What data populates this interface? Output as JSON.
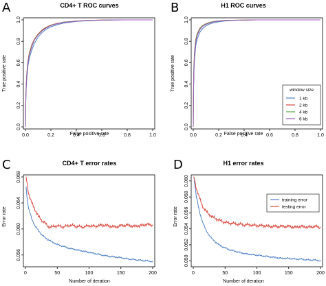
{
  "chart_data": [
    {
      "type": "line",
      "panel": "A",
      "title": "CD4+ T ROC curves",
      "xlabel": "False positive rate",
      "ylabel": "True positive rate",
      "xlim": [
        0,
        1
      ],
      "ylim": [
        0,
        1
      ],
      "xticks": [
        "0.0",
        "0.2",
        "0.4",
        "0.6",
        "0.8",
        "1.0"
      ],
      "yticks": [
        "0.0",
        "0.2",
        "0.4",
        "0.6",
        "0.8",
        "1.0"
      ],
      "grid": false,
      "series": [
        {
          "name": "1 kb",
          "color": "#4f81c7",
          "x": [
            0,
            0.002,
            0.005,
            0.01,
            0.02,
            0.03,
            0.05,
            0.07,
            0.1,
            0.13,
            0.16,
            0.2,
            0.25,
            0.3,
            0.4,
            0.5,
            0.6,
            0.7,
            0.8,
            0.9,
            1.0
          ],
          "y": [
            0,
            0.2,
            0.33,
            0.45,
            0.57,
            0.64,
            0.72,
            0.78,
            0.84,
            0.88,
            0.91,
            0.935,
            0.955,
            0.97,
            0.985,
            0.993,
            0.997,
            0.999,
            1.0,
            1.0,
            1.0
          ]
        },
        {
          "name": "2 kb",
          "color": "#d9473b",
          "x": [
            0,
            0.002,
            0.005,
            0.01,
            0.02,
            0.03,
            0.05,
            0.07,
            0.1,
            0.13,
            0.16,
            0.2,
            0.25,
            0.3,
            0.4,
            0.5,
            0.6,
            0.7,
            0.8,
            0.9,
            1.0
          ],
          "y": [
            0,
            0.23,
            0.37,
            0.5,
            0.62,
            0.69,
            0.77,
            0.82,
            0.87,
            0.905,
            0.93,
            0.952,
            0.968,
            0.979,
            0.99,
            0.996,
            0.998,
            1.0,
            1.0,
            1.0,
            1.0
          ]
        },
        {
          "name": "4 kb",
          "color": "#5aa64a",
          "x": [
            0,
            0.002,
            0.005,
            0.01,
            0.02,
            0.03,
            0.05,
            0.07,
            0.1,
            0.13,
            0.16,
            0.2,
            0.25,
            0.3,
            0.4,
            0.5,
            0.6,
            0.7,
            0.8,
            0.9,
            1.0
          ],
          "y": [
            0,
            0.22,
            0.36,
            0.49,
            0.61,
            0.68,
            0.76,
            0.815,
            0.865,
            0.9,
            0.926,
            0.95,
            0.966,
            0.978,
            0.989,
            0.995,
            0.998,
            1.0,
            1.0,
            1.0,
            1.0
          ]
        },
        {
          "name": "6 kb",
          "color": "#9b59b6",
          "x": [
            0,
            0.002,
            0.005,
            0.01,
            0.02,
            0.03,
            0.05,
            0.07,
            0.1,
            0.13,
            0.16,
            0.2,
            0.25,
            0.3,
            0.4,
            0.5,
            0.6,
            0.7,
            0.8,
            0.9,
            1.0
          ],
          "y": [
            0,
            0.21,
            0.35,
            0.48,
            0.6,
            0.67,
            0.75,
            0.81,
            0.86,
            0.895,
            0.922,
            0.947,
            0.964,
            0.976,
            0.988,
            0.995,
            0.998,
            1.0,
            1.0,
            1.0,
            1.0
          ]
        }
      ]
    },
    {
      "type": "line",
      "panel": "B",
      "title": "H1 ROC curves",
      "xlabel": "False positive rate",
      "ylabel": "True positive rate",
      "xlim": [
        0,
        1
      ],
      "ylim": [
        0,
        1
      ],
      "xticks": [
        "0.0",
        "0.2",
        "0.4",
        "0.6",
        "0.8",
        "1.0"
      ],
      "yticks": [
        "0.0",
        "0.2",
        "0.4",
        "0.6",
        "0.8",
        "1.0"
      ],
      "grid": false,
      "legend": {
        "title": "window size",
        "placement": "right"
      },
      "series": [
        {
          "name": "1 kb",
          "color": "#4f81c7",
          "x": [
            0,
            0.002,
            0.005,
            0.01,
            0.02,
            0.03,
            0.05,
            0.07,
            0.1,
            0.13,
            0.16,
            0.2,
            0.25,
            0.3,
            0.4,
            0.5,
            0.6,
            0.7,
            0.8,
            0.9,
            1.0
          ],
          "y": [
            0,
            0.3,
            0.5,
            0.64,
            0.76,
            0.82,
            0.88,
            0.915,
            0.945,
            0.962,
            0.973,
            0.983,
            0.99,
            0.994,
            0.998,
            1.0,
            1.0,
            1.0,
            1.0,
            1.0,
            1.0
          ]
        },
        {
          "name": "2 kb",
          "color": "#d9473b",
          "x": [
            0,
            0.002,
            0.005,
            0.01,
            0.02,
            0.03,
            0.05,
            0.07,
            0.1,
            0.13,
            0.16,
            0.2,
            0.25,
            0.3,
            0.4,
            0.5,
            0.6,
            0.7,
            0.8,
            0.9,
            1.0
          ],
          "y": [
            0,
            0.36,
            0.57,
            0.71,
            0.82,
            0.87,
            0.92,
            0.945,
            0.965,
            0.977,
            0.985,
            0.991,
            0.995,
            0.997,
            0.999,
            1.0,
            1.0,
            1.0,
            1.0,
            1.0,
            1.0
          ]
        },
        {
          "name": "4 kb",
          "color": "#5aa64a",
          "x": [
            0,
            0.002,
            0.005,
            0.01,
            0.02,
            0.03,
            0.05,
            0.07,
            0.1,
            0.13,
            0.16,
            0.2,
            0.25,
            0.3,
            0.4,
            0.5,
            0.6,
            0.7,
            0.8,
            0.9,
            1.0
          ],
          "y": [
            0,
            0.35,
            0.56,
            0.7,
            0.81,
            0.865,
            0.915,
            0.942,
            0.963,
            0.976,
            0.984,
            0.99,
            0.994,
            0.997,
            0.999,
            1.0,
            1.0,
            1.0,
            1.0,
            1.0,
            1.0
          ]
        },
        {
          "name": "6 kb",
          "color": "#9b59b6",
          "x": [
            0,
            0.002,
            0.005,
            0.01,
            0.02,
            0.03,
            0.05,
            0.07,
            0.1,
            0.13,
            0.16,
            0.2,
            0.25,
            0.3,
            0.4,
            0.5,
            0.6,
            0.7,
            0.8,
            0.9,
            1.0
          ],
          "y": [
            0,
            0.33,
            0.54,
            0.68,
            0.79,
            0.85,
            0.905,
            0.935,
            0.958,
            0.972,
            0.981,
            0.988,
            0.993,
            0.996,
            0.999,
            1.0,
            1.0,
            1.0,
            1.0,
            1.0,
            1.0
          ]
        }
      ]
    },
    {
      "type": "line",
      "panel": "C",
      "title": "CD4+ T error rates",
      "xlabel": "Number of iteration",
      "ylabel": "Error rate",
      "xlim": [
        0,
        200
      ],
      "ylim": [
        0.0545,
        0.068
      ],
      "xticks": [
        "0",
        "50",
        "100",
        "150",
        "200"
      ],
      "yticks": [
        "0.056",
        "0.060",
        "0.064",
        "0.068"
      ],
      "grid": false,
      "series": [
        {
          "name": "training error",
          "color": "#4f81c7",
          "x": [
            1,
            3,
            5,
            8,
            10,
            15,
            20,
            25,
            30,
            40,
            50,
            60,
            70,
            80,
            90,
            100,
            110,
            120,
            130,
            140,
            150,
            160,
            170,
            180,
            190,
            200
          ],
          "y": [
            0.0665,
            0.0643,
            0.0632,
            0.0622,
            0.0615,
            0.0605,
            0.0598,
            0.0592,
            0.0587,
            0.0581,
            0.0576,
            0.0573,
            0.057,
            0.0568,
            0.0566,
            0.0564,
            0.0562,
            0.056,
            0.0558,
            0.0557,
            0.0556,
            0.0554,
            0.0553,
            0.0552,
            0.0551,
            0.055
          ]
        },
        {
          "name": "testing error",
          "color": "#d9473b",
          "x": [
            1,
            3,
            5,
            8,
            10,
            15,
            20,
            25,
            30,
            35,
            40,
            50,
            60,
            70,
            80,
            90,
            100,
            110,
            120,
            130,
            140,
            150,
            160,
            170,
            180,
            190,
            200
          ],
          "y": [
            0.068,
            0.0668,
            0.0655,
            0.0645,
            0.064,
            0.063,
            0.062,
            0.0614,
            0.061,
            0.0604,
            0.0603,
            0.0605,
            0.0603,
            0.0606,
            0.0604,
            0.0603,
            0.0605,
            0.0604,
            0.0606,
            0.0605,
            0.0603,
            0.0605,
            0.0606,
            0.0604,
            0.0605,
            0.0607,
            0.0606
          ]
        }
      ]
    },
    {
      "type": "line",
      "panel": "D",
      "title": "H1 error rates",
      "xlabel": "Number of iteration",
      "ylabel": "Error rate",
      "xlim": [
        0,
        200
      ],
      "ylim": [
        0.0495,
        0.0605
      ],
      "xticks": [
        "0",
        "50",
        "100",
        "150",
        "200"
      ],
      "yticks": [
        "0.050",
        "0.052",
        "0.054",
        "0.056",
        "0.058",
        "0.060"
      ],
      "grid": false,
      "legend": {
        "placement": "top-right"
      },
      "series": [
        {
          "name": "training error",
          "color": "#4f81c7",
          "x": [
            1,
            3,
            5,
            8,
            10,
            15,
            20,
            25,
            30,
            40,
            50,
            60,
            70,
            80,
            90,
            100,
            110,
            120,
            130,
            140,
            150,
            160,
            170,
            180,
            190,
            200
          ],
          "y": [
            0.0605,
            0.0592,
            0.058,
            0.0568,
            0.056,
            0.0548,
            0.0538,
            0.0532,
            0.0527,
            0.052,
            0.0516,
            0.0513,
            0.0511,
            0.0509,
            0.0508,
            0.0507,
            0.0506,
            0.0505,
            0.0504,
            0.0503,
            0.0503,
            0.0502,
            0.0502,
            0.0501,
            0.0501,
            0.05
          ]
        },
        {
          "name": "testing error",
          "color": "#d9473b",
          "x": [
            1,
            3,
            5,
            8,
            10,
            15,
            20,
            25,
            30,
            40,
            50,
            60,
            70,
            80,
            90,
            100,
            110,
            120,
            130,
            140,
            150,
            160,
            170,
            180,
            190,
            200
          ],
          "y": [
            0.0605,
            0.0598,
            0.059,
            0.0583,
            0.0578,
            0.0568,
            0.0562,
            0.0558,
            0.0555,
            0.0551,
            0.0548,
            0.0547,
            0.0546,
            0.0545,
            0.0545,
            0.0544,
            0.0544,
            0.0543,
            0.0543,
            0.0543,
            0.0543,
            0.0542,
            0.0543,
            0.0542,
            0.0543,
            0.0542
          ]
        }
      ]
    }
  ]
}
